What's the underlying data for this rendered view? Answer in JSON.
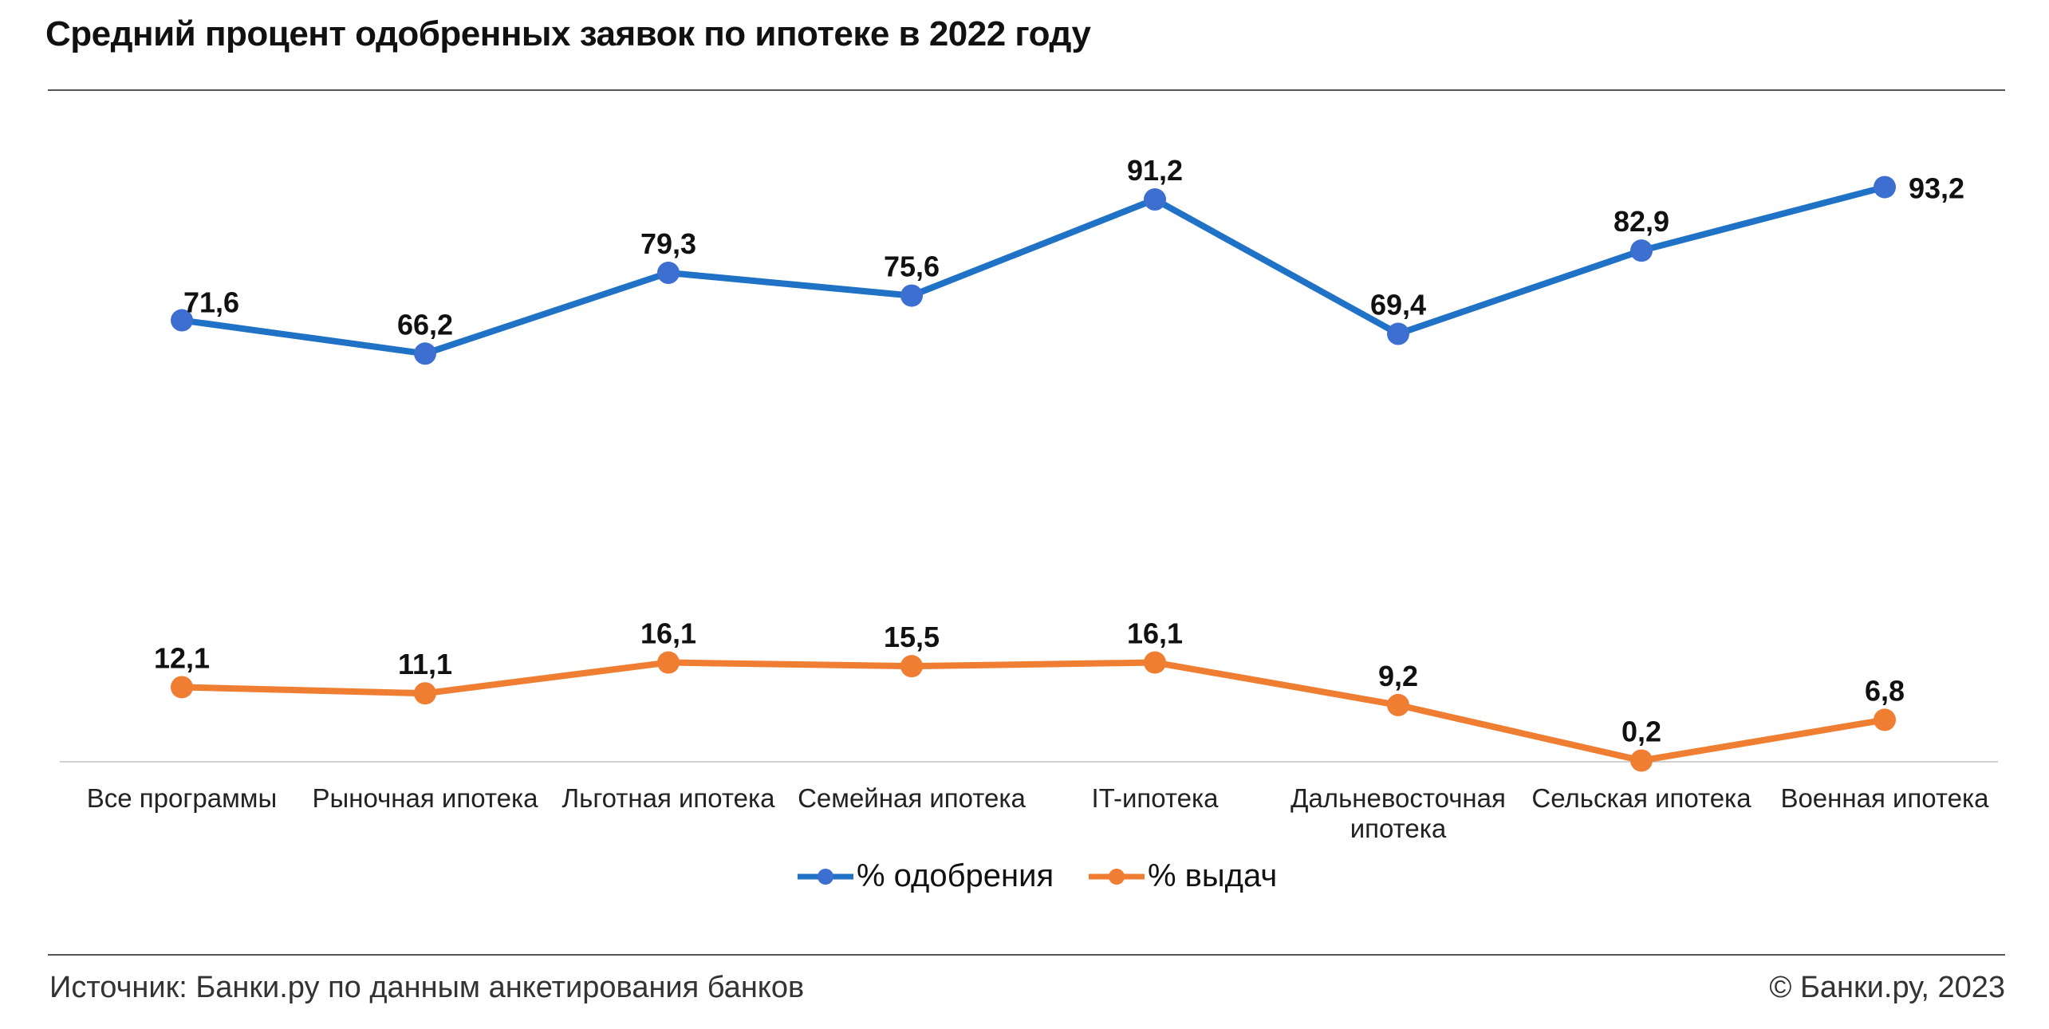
{
  "title": "Средний процент одобренных заявок по ипотеке в 2022 году",
  "source": "Источник: Банки.ру по данным анкетирования банков",
  "copyright": "© Банки.ру, 2023",
  "colors": {
    "approval": "#1f72c6",
    "approval_marker": "#3d6fd0",
    "issuance": "#ef7d32"
  },
  "chart_data": {
    "type": "line",
    "title": "Средний процент одобренных заявок по ипотеке в 2022 году",
    "xlabel": "",
    "ylabel": "",
    "categories": [
      [
        "Все программы"
      ],
      [
        "Рыночная ипотека"
      ],
      [
        "Льготная ипотека"
      ],
      [
        "Семейная ипотека"
      ],
      [
        "IT-ипотека"
      ],
      [
        "Дальневосточная",
        "ипотека"
      ],
      [
        "Сельская ипотека"
      ],
      [
        "Военная ипотека"
      ]
    ],
    "series": [
      {
        "name": "% одобрения",
        "values": [
          71.6,
          66.2,
          79.3,
          75.6,
          91.2,
          69.4,
          82.9,
          93.2
        ],
        "labels": [
          "71,6",
          "66,2",
          "79,3",
          "75,6",
          "91,2",
          "69,4",
          "82,9",
          "93,2"
        ]
      },
      {
        "name": "% выдач",
        "values": [
          12.1,
          11.1,
          16.1,
          15.5,
          16.1,
          9.2,
          0.2,
          6.8
        ],
        "labels": [
          "12,1",
          "11,1",
          "16,1",
          "15,5",
          "16,1",
          "9,2",
          "0,2",
          "6,8"
        ]
      }
    ],
    "ylim": [
      0,
      100
    ],
    "grid": false,
    "legend": "bottom-center"
  }
}
